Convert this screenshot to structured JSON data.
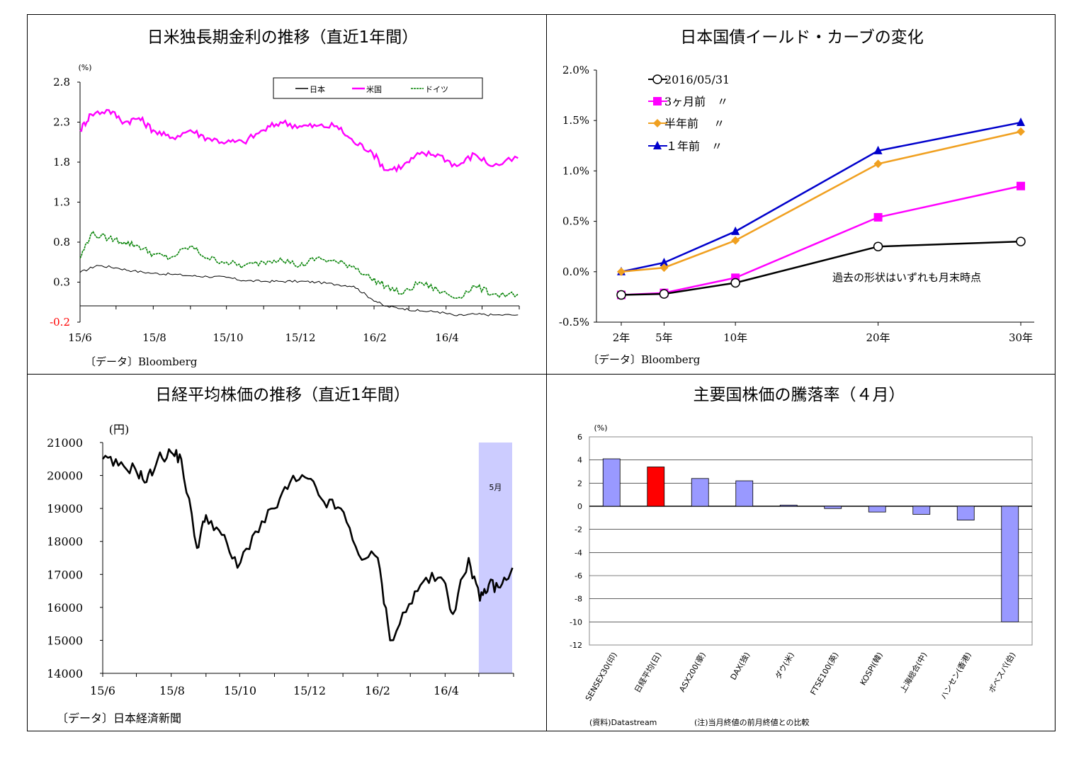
{
  "panels": {
    "rates": {
      "title": "日米独長期金利の推移（直近1年間）",
      "unit": "(%)",
      "source": "〔データ〕Bloomberg",
      "legend": [
        "日本",
        "米国",
        "ドイツ"
      ],
      "colors": {
        "japan": "#000000",
        "us": "#ff00ff",
        "germany": "#008000",
        "neg_tick": "#ff0000"
      }
    },
    "curve": {
      "title": "日本国債イールド・カーブの変化",
      "source": "〔データ〕Bloomberg",
      "note": "過去の形状はいずれも月末時点",
      "legend": [
        "2016/05/31",
        "3ヶ月前　〃",
        "半年前　 〃",
        "１年前　〃"
      ],
      "colors": {
        "s0": "#000000",
        "s1": "#ff00ff",
        "s2": "#f0a020",
        "s3": "#0000cc"
      }
    },
    "nikkei": {
      "title": "日経平均株価の推移（直近1年間）",
      "unit": "(円)",
      "source": "〔データ〕日本経済新聞",
      "shade_label": "5月",
      "colors": {
        "line": "#000000",
        "shade": "#ccccff"
      }
    },
    "indices": {
      "title": "主要国株価の騰落率（４月）",
      "unit": "(%)",
      "source": "(資料)Datastream",
      "note": "(注)当月終値の前月終値との比較",
      "colors": {
        "bar": "#9999ff",
        "highlight": "#ff0000"
      }
    }
  },
  "chart_data": [
    {
      "type": "line",
      "title": "日米独長期金利の推移（直近1年間）",
      "ylabel": "(%)",
      "ylim": [
        -0.2,
        2.8
      ],
      "yticks": [
        2.8,
        2.3,
        1.8,
        1.3,
        0.8,
        0.3,
        -0.2
      ],
      "x_ticks": [
        "15/6",
        "15/8",
        "15/10",
        "15/12",
        "16/2",
        "16/4"
      ],
      "x_range": [
        "2015/6",
        "2016/5"
      ],
      "legend_position": "top-right",
      "series": [
        {
          "name": "日本",
          "x": [
            "2015/6/1",
            "2015/6/15",
            "2015/7/1",
            "2015/7/15",
            "2015/8/1",
            "2015/8/15",
            "2015/9/1",
            "2015/9/15",
            "2015/10/1",
            "2015/10/15",
            "2015/11/1",
            "2015/11/15",
            "2015/12/1",
            "2015/12/15",
            "2016/1/1",
            "2016/1/15",
            "2016/1/29",
            "2016/2/10",
            "2016/2/25",
            "2016/3/10",
            "2016/3/25",
            "2016/4/10",
            "2016/4/25",
            "2016/5/10",
            "2016/5/31"
          ],
          "values": [
            0.42,
            0.51,
            0.48,
            0.44,
            0.41,
            0.4,
            0.38,
            0.37,
            0.36,
            0.32,
            0.31,
            0.31,
            0.31,
            0.3,
            0.27,
            0.25,
            0.1,
            0.0,
            -0.03,
            -0.06,
            -0.07,
            -0.12,
            -0.1,
            -0.11,
            -0.11
          ]
        },
        {
          "name": "米国",
          "x": [
            "2015/6/1",
            "2015/6/10",
            "2015/6/25",
            "2015/7/8",
            "2015/7/20",
            "2015/8/1",
            "2015/8/15",
            "2015/9/1",
            "2015/9/15",
            "2015/10/1",
            "2015/10/15",
            "2015/11/1",
            "2015/11/15",
            "2015/12/1",
            "2015/12/15",
            "2016/1/1",
            "2016/1/15",
            "2016/1/29",
            "2016/2/11",
            "2016/2/25",
            "2016/3/10",
            "2016/3/25",
            "2016/4/10",
            "2016/4/25",
            "2016/5/10",
            "2016/5/31"
          ],
          "values": [
            2.2,
            2.4,
            2.45,
            2.3,
            2.35,
            2.2,
            2.1,
            2.2,
            2.1,
            2.05,
            2.05,
            2.2,
            2.3,
            2.25,
            2.25,
            2.25,
            2.05,
            1.95,
            1.7,
            1.75,
            1.9,
            1.9,
            1.75,
            1.9,
            1.75,
            1.85
          ]
        },
        {
          "name": "ドイツ",
          "x": [
            "2015/6/1",
            "2015/6/10",
            "2015/6/25",
            "2015/7/8",
            "2015/7/20",
            "2015/8/1",
            "2015/8/15",
            "2015/9/1",
            "2015/9/15",
            "2015/10/1",
            "2015/10/15",
            "2015/11/1",
            "2015/11/15",
            "2015/12/1",
            "2015/12/15",
            "2016/1/1",
            "2016/1/15",
            "2016/1/29",
            "2016/2/11",
            "2016/2/25",
            "2016/3/10",
            "2016/3/25",
            "2016/4/10",
            "2016/4/25",
            "2016/5/10",
            "2016/5/31"
          ],
          "values": [
            0.6,
            0.9,
            0.85,
            0.8,
            0.75,
            0.65,
            0.6,
            0.75,
            0.6,
            0.55,
            0.5,
            0.55,
            0.6,
            0.5,
            0.6,
            0.55,
            0.5,
            0.35,
            0.25,
            0.15,
            0.3,
            0.2,
            0.1,
            0.25,
            0.15,
            0.15
          ]
        }
      ]
    },
    {
      "type": "line",
      "title": "日本国債イールド・カーブの変化",
      "categories": [
        "2年",
        "5年",
        "10年",
        "20年",
        "30年"
      ],
      "x": [
        2,
        5,
        10,
        20,
        30
      ],
      "ylim": [
        -0.5,
        2.0
      ],
      "yticks": [
        "2.0%",
        "1.5%",
        "1.0%",
        "0.5%",
        "0.0%",
        "-0.5%"
      ],
      "legend_position": "top-left",
      "series": [
        {
          "name": "2016/05/31",
          "values": [
            -0.23,
            -0.22,
            -0.11,
            0.25,
            0.3
          ]
        },
        {
          "name": "3ヶ月前　〃",
          "values": [
            -0.23,
            -0.21,
            -0.06,
            0.54,
            0.85
          ]
        },
        {
          "name": "半年前　 〃",
          "values": [
            0.0,
            0.04,
            0.31,
            1.07,
            1.39
          ]
        },
        {
          "name": "１年前　〃",
          "values": [
            0.0,
            0.09,
            0.4,
            1.2,
            1.48
          ]
        }
      ]
    },
    {
      "type": "line",
      "title": "日経平均株価の推移（直近1年間）",
      "ylabel": "(円)",
      "ylim": [
        14000,
        21000
      ],
      "yticks": [
        21000,
        20000,
        19000,
        18000,
        17000,
        16000,
        15000,
        14000
      ],
      "x_ticks": [
        "15/6",
        "15/8",
        "15/10",
        "15/12",
        "16/2",
        "16/4"
      ],
      "x_range": [
        "2015/6",
        "2016/5"
      ],
      "shaded_region": {
        "from": "2016/5/1",
        "to": "2016/5/31",
        "label": "5月"
      },
      "series": [
        {
          "name": "",
          "x": [
            "2015/6/1",
            "2015/6/15",
            "2015/6/30",
            "2015/7/10",
            "2015/7/20",
            "2015/8/1",
            "2015/8/10",
            "2015/8/24",
            "2015/9/1",
            "2015/9/15",
            "2015/9/29",
            "2015/10/15",
            "2015/11/1",
            "2015/11/15",
            "2015/12/1",
            "2015/12/15",
            "2015/12/30",
            "2016/1/15",
            "2016/2/1",
            "2016/2/12",
            "2016/2/29",
            "2016/3/15",
            "2016/3/31",
            "2016/4/8",
            "2016/4/22",
            "2016/5/2",
            "2016/5/10",
            "2016/5/20",
            "2016/5/31"
          ],
          "values": [
            20500,
            20300,
            20200,
            19800,
            20500,
            20700,
            20500,
            17800,
            18800,
            18200,
            17200,
            18300,
            19000,
            19800,
            19900,
            19200,
            19000,
            17600,
            17500,
            15000,
            16100,
            16900,
            16800,
            15800,
            17500,
            16200,
            16700,
            16600,
            17200
          ]
        }
      ]
    },
    {
      "type": "bar",
      "title": "主要国株価の騰落率（４月）",
      "ylabel": "(%)",
      "ylim": [
        -12,
        6
      ],
      "yticks": [
        6,
        4,
        2,
        0,
        -2,
        -4,
        -6,
        -8,
        -10,
        -12
      ],
      "categories": [
        "SENSEX30(印)",
        "日経平均(日)",
        "ASX200(豪)",
        "DAX(独)",
        "ダウ(米)",
        "FTSE100(英)",
        "KOSPI(韓)",
        "上海総合(中)",
        "ハンセン(香港)",
        "ボベスパ(伯)"
      ],
      "values": [
        4.1,
        3.4,
        2.4,
        2.2,
        0.1,
        -0.2,
        -0.5,
        -0.7,
        -1.2,
        -10.0
      ],
      "highlight": "日経平均(日)"
    }
  ]
}
